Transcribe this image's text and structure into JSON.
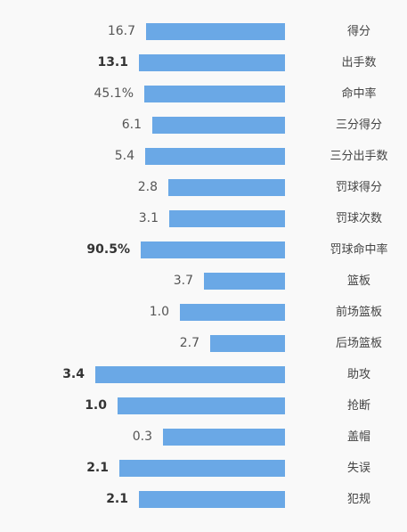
{
  "rows": [
    {
      "label": "得分",
      "value": "16.7",
      "bold": false
    },
    {
      "label": "出手数",
      "value": "13.1",
      "bold": true
    },
    {
      "label": "命中率",
      "value": "45.1%",
      "bold": false
    },
    {
      "label": "三分得分",
      "value": "6.1",
      "bold": false
    },
    {
      "label": "三分出手数",
      "value": "5.4",
      "bold": false
    },
    {
      "label": "罚球得分",
      "value": "2.8",
      "bold": false
    },
    {
      "label": "罚球次数",
      "value": "3.1",
      "bold": false
    },
    {
      "label": "罚球命中率",
      "value": "90.5%",
      "bold": true
    },
    {
      "label": "篮板",
      "value": "3.7",
      "bold": false
    },
    {
      "label": "前场篮板",
      "value": "1.0",
      "bold": false
    },
    {
      "label": "后场篮板",
      "value": "2.7",
      "bold": false
    },
    {
      "label": "助攻",
      "value": "3.4",
      "bold": true
    },
    {
      "label": "抢断",
      "value": "1.0",
      "bold": true
    },
    {
      "label": "盖帽",
      "value": "0.3",
      "bold": false
    },
    {
      "label": "失误",
      "value": "2.1",
      "bold": true
    },
    {
      "label": "犯规",
      "value": "2.1",
      "bold": true
    }
  ]
}
